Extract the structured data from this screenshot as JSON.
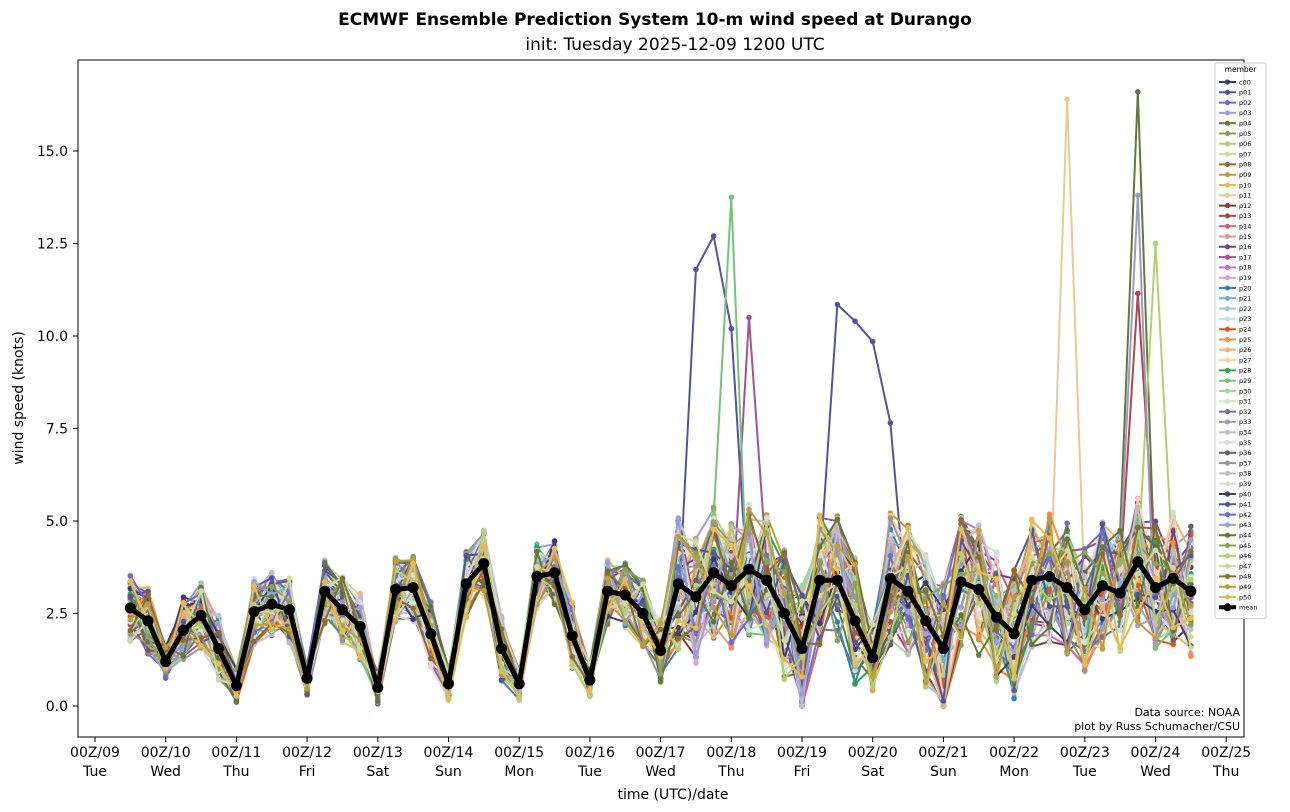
{
  "chart_data": {
    "type": "line",
    "title": "ECMWF Ensemble Prediction System 10-m wind speed at Durango",
    "subtitle": "init: Tuesday 2025-12-09 1200 UTC",
    "xlabel": "time (UTC)/date",
    "ylabel": "wind speed (knots)",
    "ylim": [
      -0.8,
      17.8
    ],
    "xlim_days": [
      -0.2,
      16.2
    ],
    "x_start_offset_hours": 12,
    "x_step_hours": 6,
    "yticks": [
      "0.0",
      "2.5",
      "5.0",
      "7.5",
      "10.0",
      "12.5",
      "15.0"
    ],
    "ytick_values": [
      0,
      2.5,
      5,
      7.5,
      10,
      12.5,
      15
    ],
    "xticks": [
      {
        "top": "00Z/09",
        "bottom": "Tue"
      },
      {
        "top": "00Z/10",
        "bottom": "Wed"
      },
      {
        "top": "00Z/11",
        "bottom": "Thu"
      },
      {
        "top": "00Z/12",
        "bottom": "Fri"
      },
      {
        "top": "00Z/13",
        "bottom": "Sat"
      },
      {
        "top": "00Z/14",
        "bottom": "Sun"
      },
      {
        "top": "00Z/15",
        "bottom": "Mon"
      },
      {
        "top": "00Z/16",
        "bottom": "Tue"
      },
      {
        "top": "00Z/17",
        "bottom": "Wed"
      },
      {
        "top": "00Z/18",
        "bottom": "Thu"
      },
      {
        "top": "00Z/19",
        "bottom": "Fri"
      },
      {
        "top": "00Z/20",
        "bottom": "Sat"
      },
      {
        "top": "00Z/21",
        "bottom": "Sun"
      },
      {
        "top": "00Z/22",
        "bottom": "Mon"
      },
      {
        "top": "00Z/23",
        "bottom": "Tue"
      },
      {
        "top": "00Z/24",
        "bottom": "Wed"
      },
      {
        "top": "00Z/25",
        "bottom": "Thu"
      }
    ],
    "grid": false,
    "legend": {
      "title": "member",
      "placement": "top-right",
      "entries": [
        "c00",
        "p01",
        "p02",
        "p03",
        "p04",
        "p05",
        "p06",
        "p07",
        "p08",
        "p09",
        "p10",
        "p11",
        "p12",
        "p13",
        "p14",
        "p15",
        "p16",
        "p17",
        "p18",
        "p19",
        "p20",
        "p21",
        "p22",
        "p23",
        "p24",
        "p25",
        "p26",
        "p27",
        "p28",
        "p29",
        "p30",
        "p31",
        "p32",
        "p33",
        "p34",
        "p35",
        "p36",
        "p37",
        "p38",
        "p39",
        "p40",
        "p41",
        "p42",
        "p43",
        "p44",
        "p45",
        "p46",
        "p47",
        "p48",
        "p49",
        "p50",
        "mean"
      ]
    },
    "member_colors": [
      "#393b79",
      "#5254a3",
      "#6b6ecf",
      "#9c9ede",
      "#637939",
      "#8ca252",
      "#b5cf6b",
      "#cedb9c",
      "#8c6d31",
      "#bd9e39",
      "#e7ba52",
      "#e7cb94",
      "#843c39",
      "#ad494a",
      "#d6616b",
      "#e7969c",
      "#7b4173",
      "#a55194",
      "#ce6dbd",
      "#de9ed6",
      "#3182bd",
      "#6baed6",
      "#9ecae1",
      "#c6dbef",
      "#e6550d",
      "#fd8d3c",
      "#fdae6b",
      "#fdd0a2",
      "#31a354",
      "#74c476",
      "#a1d99b",
      "#c7e9c0",
      "#756bb1",
      "#9e9ac8",
      "#bcbddc",
      "#dadaeb",
      "#636363",
      "#969696",
      "#bdbdbd",
      "#d9d9d9",
      "#393b79",
      "#5254a3",
      "#6b6ecf",
      "#9c9ede",
      "#637939",
      "#8ca252",
      "#b5cf6b",
      "#cedb9c",
      "#8c6d31",
      "#bd9e39",
      "#e7ba52"
    ],
    "mean_color": "#000000",
    "mean": [
      2.65,
      2.3,
      1.2,
      2.05,
      2.45,
      1.55,
      0.55,
      2.55,
      2.75,
      2.6,
      0.75,
      3.1,
      2.6,
      2.15,
      0.5,
      3.15,
      3.2,
      1.95,
      0.6,
      3.3,
      3.85,
      1.55,
      0.6,
      3.5,
      3.6,
      1.9,
      0.7,
      3.1,
      3.0,
      2.5,
      1.5,
      3.3,
      2.95,
      3.6,
      3.25,
      3.7,
      3.4,
      2.5,
      1.55,
      3.4,
      3.4,
      2.3,
      1.3,
      3.45,
      3.1,
      2.3,
      1.55,
      3.35,
      3.15,
      2.4,
      1.95,
      3.4,
      3.5,
      3.2,
      2.6,
      3.25,
      3.05,
      3.9,
      3.2,
      3.45,
      3.1
    ],
    "notable_member_peaks": [
      {
        "member": "p01",
        "values_at_steps": {
          "32": 11.8,
          "33": 12.7,
          "34": 10.2,
          "40": 10.85,
          "41": 10.4,
          "42": 9.85,
          "43": 7.65
        }
      },
      {
        "member": "p29",
        "value": 13.75,
        "step": 34
      },
      {
        "member": "p17",
        "value": 10.5,
        "step": 35
      },
      {
        "member": "p11",
        "value": 16.4,
        "step": 53
      },
      {
        "member": "p04",
        "value": 16.6,
        "step": 57
      },
      {
        "member": "p33",
        "value": 13.8,
        "step": 57
      },
      {
        "member": "p06",
        "value": 12.5,
        "step": 58
      },
      {
        "member": "p13",
        "value": 11.15,
        "step": 57
      }
    ],
    "annotations": [
      "Data source: NOAA",
      "plot by Russ Schumacher/CSU"
    ]
  }
}
